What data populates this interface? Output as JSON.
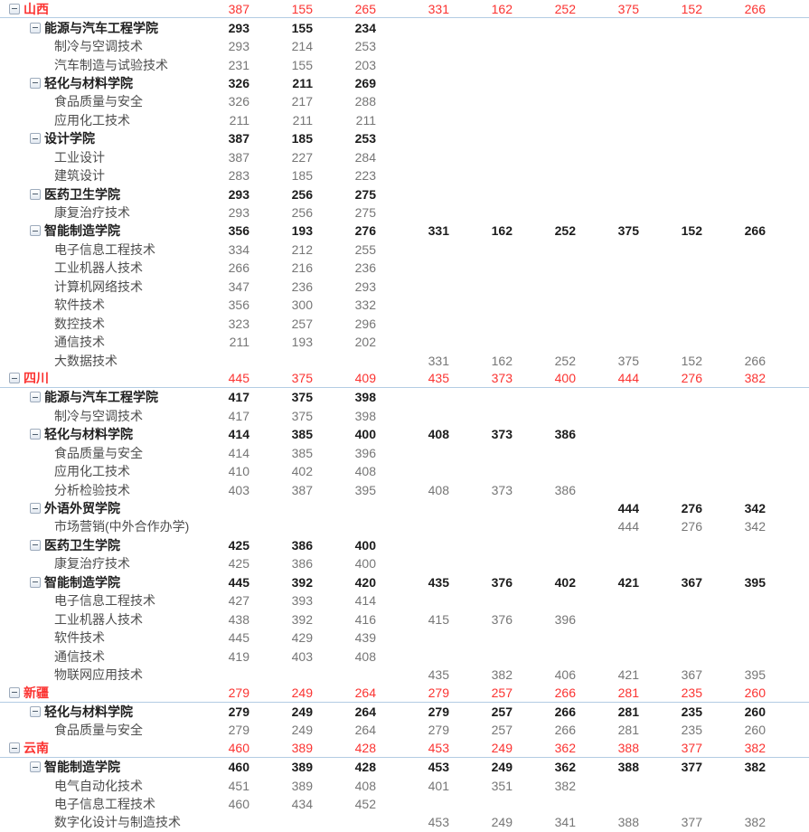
{
  "colors": {
    "accent_red": "#fb3331",
    "divider": "#b3cce3",
    "college_text": "#1e1e1e",
    "program_text": "#4d4d4d",
    "program_value_text": "#767676"
  },
  "table": {
    "rows": [
      {
        "level": 0,
        "label": "山西",
        "values": [
          "387",
          "155",
          "265",
          "331",
          "162",
          "252",
          "375",
          "152",
          "266"
        ]
      },
      {
        "level": 1,
        "label": "能源与汽车工程学院",
        "values": [
          "293",
          "155",
          "234",
          "",
          "",
          "",
          "",
          "",
          ""
        ]
      },
      {
        "level": 2,
        "label": "制冷与空调技术",
        "values": [
          "293",
          "214",
          "253",
          "",
          "",
          "",
          "",
          "",
          ""
        ]
      },
      {
        "level": 2,
        "label": "汽车制造与试验技术",
        "values": [
          "231",
          "155",
          "203",
          "",
          "",
          "",
          "",
          "",
          ""
        ]
      },
      {
        "level": 1,
        "label": "轻化与材料学院",
        "values": [
          "326",
          "211",
          "269",
          "",
          "",
          "",
          "",
          "",
          ""
        ]
      },
      {
        "level": 2,
        "label": "食品质量与安全",
        "values": [
          "326",
          "217",
          "288",
          "",
          "",
          "",
          "",
          "",
          ""
        ]
      },
      {
        "level": 2,
        "label": "应用化工技术",
        "values": [
          "211",
          "211",
          "211",
          "",
          "",
          "",
          "",
          "",
          ""
        ]
      },
      {
        "level": 1,
        "label": "设计学院",
        "values": [
          "387",
          "185",
          "253",
          "",
          "",
          "",
          "",
          "",
          ""
        ]
      },
      {
        "level": 2,
        "label": "工业设计",
        "values": [
          "387",
          "227",
          "284",
          "",
          "",
          "",
          "",
          "",
          ""
        ]
      },
      {
        "level": 2,
        "label": "建筑设计",
        "values": [
          "283",
          "185",
          "223",
          "",
          "",
          "",
          "",
          "",
          ""
        ]
      },
      {
        "level": 1,
        "label": "医药卫生学院",
        "values": [
          "293",
          "256",
          "275",
          "",
          "",
          "",
          "",
          "",
          ""
        ]
      },
      {
        "level": 2,
        "label": "康复治疗技术",
        "values": [
          "293",
          "256",
          "275",
          "",
          "",
          "",
          "",
          "",
          ""
        ]
      },
      {
        "level": 1,
        "label": "智能制造学院",
        "values": [
          "356",
          "193",
          "276",
          "331",
          "162",
          "252",
          "375",
          "152",
          "266"
        ]
      },
      {
        "level": 2,
        "label": "电子信息工程技术",
        "values": [
          "334",
          "212",
          "255",
          "",
          "",
          "",
          "",
          "",
          ""
        ]
      },
      {
        "level": 2,
        "label": "工业机器人技术",
        "values": [
          "266",
          "216",
          "236",
          "",
          "",
          "",
          "",
          "",
          ""
        ]
      },
      {
        "level": 2,
        "label": "计算机网络技术",
        "values": [
          "347",
          "236",
          "293",
          "",
          "",
          "",
          "",
          "",
          ""
        ]
      },
      {
        "level": 2,
        "label": "软件技术",
        "values": [
          "356",
          "300",
          "332",
          "",
          "",
          "",
          "",
          "",
          ""
        ]
      },
      {
        "level": 2,
        "label": "数控技术",
        "values": [
          "323",
          "257",
          "296",
          "",
          "",
          "",
          "",
          "",
          ""
        ]
      },
      {
        "level": 2,
        "label": "通信技术",
        "values": [
          "211",
          "193",
          "202",
          "",
          "",
          "",
          "",
          "",
          ""
        ]
      },
      {
        "level": 2,
        "label": "大数据技术",
        "values": [
          "",
          "",
          "",
          "331",
          "162",
          "252",
          "375",
          "152",
          "266"
        ]
      },
      {
        "level": 0,
        "label": "四川",
        "values": [
          "445",
          "375",
          "409",
          "435",
          "373",
          "400",
          "444",
          "276",
          "382"
        ]
      },
      {
        "level": 1,
        "label": "能源与汽车工程学院",
        "values": [
          "417",
          "375",
          "398",
          "",
          "",
          "",
          "",
          "",
          ""
        ]
      },
      {
        "level": 2,
        "label": "制冷与空调技术",
        "values": [
          "417",
          "375",
          "398",
          "",
          "",
          "",
          "",
          "",
          ""
        ]
      },
      {
        "level": 1,
        "label": "轻化与材料学院",
        "values": [
          "414",
          "385",
          "400",
          "408",
          "373",
          "386",
          "",
          "",
          ""
        ]
      },
      {
        "level": 2,
        "label": "食品质量与安全",
        "values": [
          "414",
          "385",
          "396",
          "",
          "",
          "",
          "",
          "",
          ""
        ]
      },
      {
        "level": 2,
        "label": "应用化工技术",
        "values": [
          "410",
          "402",
          "408",
          "",
          "",
          "",
          "",
          "",
          ""
        ]
      },
      {
        "level": 2,
        "label": "分析检验技术",
        "values": [
          "403",
          "387",
          "395",
          "408",
          "373",
          "386",
          "",
          "",
          ""
        ]
      },
      {
        "level": 1,
        "label": "外语外贸学院",
        "values": [
          "",
          "",
          "",
          "",
          "",
          "",
          "444",
          "276",
          "342"
        ]
      },
      {
        "level": 2,
        "label": "市场营销(中外合作办学)",
        "values": [
          "",
          "",
          "",
          "",
          "",
          "",
          "444",
          "276",
          "342"
        ]
      },
      {
        "level": 1,
        "label": "医药卫生学院",
        "values": [
          "425",
          "386",
          "400",
          "",
          "",
          "",
          "",
          "",
          ""
        ]
      },
      {
        "level": 2,
        "label": "康复治疗技术",
        "values": [
          "425",
          "386",
          "400",
          "",
          "",
          "",
          "",
          "",
          ""
        ]
      },
      {
        "level": 1,
        "label": "智能制造学院",
        "values": [
          "445",
          "392",
          "420",
          "435",
          "376",
          "402",
          "421",
          "367",
          "395"
        ]
      },
      {
        "level": 2,
        "label": "电子信息工程技术",
        "values": [
          "427",
          "393",
          "414",
          "",
          "",
          "",
          "",
          "",
          ""
        ]
      },
      {
        "level": 2,
        "label": "工业机器人技术",
        "values": [
          "438",
          "392",
          "416",
          "415",
          "376",
          "396",
          "",
          "",
          ""
        ]
      },
      {
        "level": 2,
        "label": "软件技术",
        "values": [
          "445",
          "429",
          "439",
          "",
          "",
          "",
          "",
          "",
          ""
        ]
      },
      {
        "level": 2,
        "label": "通信技术",
        "values": [
          "419",
          "403",
          "408",
          "",
          "",
          "",
          "",
          "",
          ""
        ]
      },
      {
        "level": 2,
        "label": "物联网应用技术",
        "values": [
          "",
          "",
          "",
          "435",
          "382",
          "406",
          "421",
          "367",
          "395"
        ]
      },
      {
        "level": 0,
        "label": "新疆",
        "values": [
          "279",
          "249",
          "264",
          "279",
          "257",
          "266",
          "281",
          "235",
          "260"
        ]
      },
      {
        "level": 1,
        "label": "轻化与材料学院",
        "values": [
          "279",
          "249",
          "264",
          "279",
          "257",
          "266",
          "281",
          "235",
          "260"
        ]
      },
      {
        "level": 2,
        "label": "食品质量与安全",
        "values": [
          "279",
          "249",
          "264",
          "279",
          "257",
          "266",
          "281",
          "235",
          "260"
        ]
      },
      {
        "level": 0,
        "label": "云南",
        "values": [
          "460",
          "389",
          "428",
          "453",
          "249",
          "362",
          "388",
          "377",
          "382"
        ]
      },
      {
        "level": 1,
        "label": "智能制造学院",
        "values": [
          "460",
          "389",
          "428",
          "453",
          "249",
          "362",
          "388",
          "377",
          "382"
        ]
      },
      {
        "level": 2,
        "label": "电气自动化技术",
        "values": [
          "451",
          "389",
          "408",
          "401",
          "351",
          "382",
          "",
          "",
          ""
        ]
      },
      {
        "level": 2,
        "label": "电子信息工程技术",
        "values": [
          "460",
          "434",
          "452",
          "",
          "",
          "",
          "",
          "",
          ""
        ]
      },
      {
        "level": 2,
        "label": "数字化设计与制造技术",
        "values": [
          "",
          "",
          "",
          "453",
          "249",
          "341",
          "388",
          "377",
          "382"
        ]
      }
    ]
  }
}
